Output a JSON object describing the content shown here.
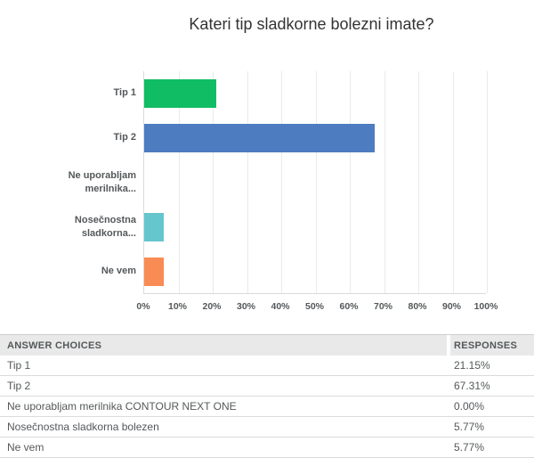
{
  "title": "Kateri tip sladkorne bolezni imate?",
  "chart_data": {
    "type": "bar",
    "orientation": "horizontal",
    "title": "Kateri tip sladkorne bolezni imate?",
    "categories": [
      "Tip 1",
      "Tip 2",
      "Ne uporabljam merilnika CONTOUR NEXT ONE",
      "Nosečnostna sladkorna bolezen",
      "Ne vem"
    ],
    "category_display_labels": [
      "Tip 1",
      "Tip 2",
      "Ne uporabljam\nmerilnika...",
      "Nosečnostna\nsladkorna...",
      "Ne vem"
    ],
    "values": [
      21.15,
      67.31,
      0.0,
      5.77,
      5.77
    ],
    "bar_colors": [
      "#11bd64",
      "#4d7cc1",
      "#66c6cd",
      "#66c6cd",
      "#f98b54"
    ],
    "bar_colors_note": "row3 value is 0 so no bar is drawn; visible bar colors top-to-bottom: green, blue, teal, orange",
    "xlim": [
      0,
      100
    ],
    "x_tick_labels": [
      "0%",
      "10%",
      "20%",
      "30%",
      "40%",
      "50%",
      "60%",
      "70%",
      "80%",
      "90%",
      "100%"
    ],
    "grid": true,
    "legend": false,
    "xlabel": "",
    "ylabel": ""
  },
  "table": {
    "headers": {
      "choices": "ANSWER CHOICES",
      "responses": "RESPONSES"
    },
    "rows": [
      {
        "choice": "Tip 1",
        "response": "21.15%"
      },
      {
        "choice": "Tip 2",
        "response": "67.31%"
      },
      {
        "choice": "Ne uporabljam merilnika CONTOUR NEXT ONE",
        "response": "0.00%"
      },
      {
        "choice": "Nosečnostna sladkorna bolezen",
        "response": "5.77%"
      },
      {
        "choice": "Ne vem",
        "response": "5.77%"
      }
    ]
  }
}
